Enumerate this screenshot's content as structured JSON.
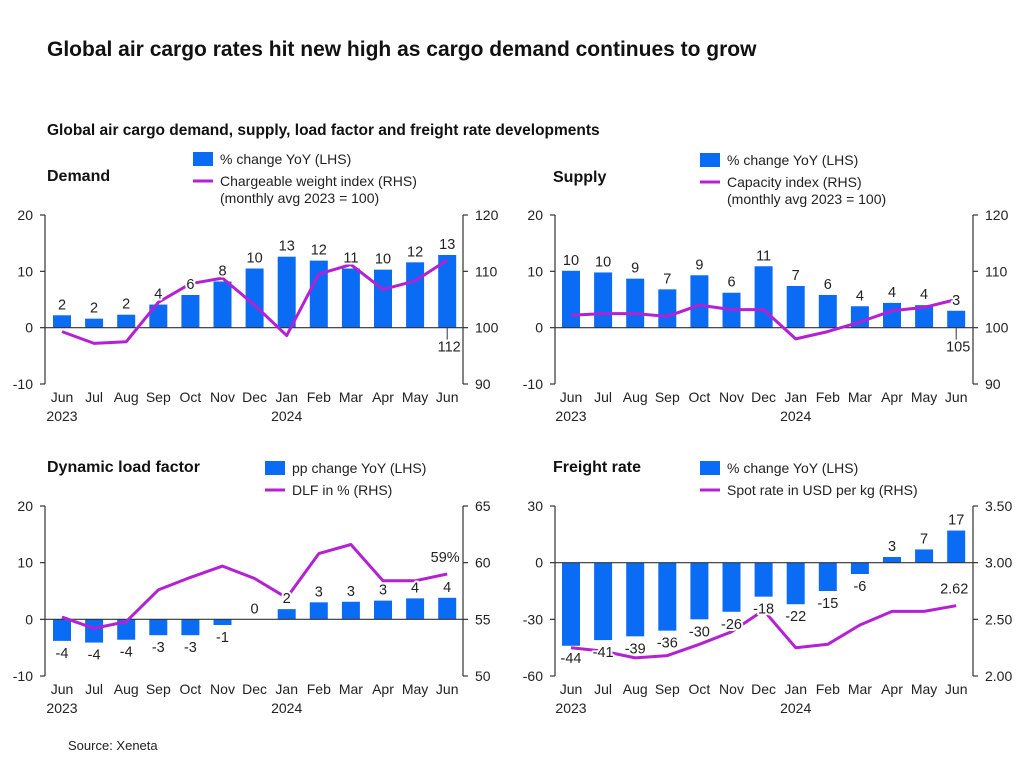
{
  "title": "Global air cargo rates hit new high as cargo demand continues to grow",
  "subtitle": "Global air cargo demand, supply, load factor and freight rate developments",
  "source": "Source: Xeneta",
  "colors": {
    "bar": "#0a6cf5",
    "line": "#b421d4",
    "axis": "#333333"
  },
  "chart_data": [
    {
      "type": "bar+line",
      "title": "Demand",
      "legend": {
        "bar": "% change YoY (LHS)",
        "line": "Chargeable weight index (RHS)",
        "line2": "(monthly avg 2023 = 100)"
      },
      "categories": [
        "Jun",
        "Jul",
        "Aug",
        "Sep",
        "Oct",
        "Nov",
        "Dec",
        "Jan",
        "Feb",
        "Mar",
        "Apr",
        "May",
        "Jun"
      ],
      "year_labels": [
        {
          "at": 0,
          "text": "2023"
        },
        {
          "at": 7,
          "text": "2024"
        }
      ],
      "bar_values": [
        2.2,
        1.6,
        2.3,
        4.1,
        5.8,
        8.2,
        10.5,
        12.6,
        11.9,
        10.5,
        10.3,
        11.6,
        12.9
      ],
      "bar_labels": [
        "2",
        "2",
        "2",
        "4",
        "6",
        "8",
        "10",
        "13",
        "12",
        "11",
        "10",
        "12",
        "13"
      ],
      "line_values": [
        99.3,
        97.2,
        97.5,
        104.5,
        107.8,
        108.8,
        104.0,
        98.6,
        109.5,
        111.2,
        106.8,
        108.3,
        112.0
      ],
      "line_end_label": "112",
      "ylim_left": [
        -10,
        20
      ],
      "yticks_left": [
        "-10",
        "0",
        "10",
        "20"
      ],
      "ylim_right": [
        90,
        120
      ],
      "yticks_right": [
        "90",
        "100",
        "110",
        "120"
      ]
    },
    {
      "type": "bar+line",
      "title": "Supply",
      "legend": {
        "bar": "% change YoY (LHS)",
        "line": "Capacity index (RHS)",
        "line2": "(monthly avg 2023 = 100)"
      },
      "categories": [
        "Jun",
        "Jul",
        "Aug",
        "Sep",
        "Oct",
        "Nov",
        "Dec",
        "Jan",
        "Feb",
        "Mar",
        "Apr",
        "May",
        "Jun"
      ],
      "year_labels": [
        {
          "at": 0,
          "text": "2023"
        },
        {
          "at": 7,
          "text": "2024"
        }
      ],
      "bar_values": [
        10.1,
        9.8,
        8.7,
        6.8,
        9.3,
        6.2,
        10.9,
        7.4,
        5.8,
        3.8,
        4.4,
        4.0,
        3.0
      ],
      "bar_labels": [
        "10",
        "10",
        "9",
        "7",
        "9",
        "6",
        "11",
        "7",
        "6",
        "4",
        "4",
        "4",
        "3"
      ],
      "line_values": [
        102.2,
        102.5,
        102.5,
        102.0,
        104.0,
        103.2,
        103.2,
        98.0,
        99.3,
        101.0,
        103.0,
        103.6,
        105.0
      ],
      "line_end_label": "105",
      "ylim_left": [
        -10,
        20
      ],
      "yticks_left": [
        "-10",
        "0",
        "10",
        "20"
      ],
      "ylim_right": [
        90,
        120
      ],
      "yticks_right": [
        "90",
        "100",
        "110",
        "120"
      ]
    },
    {
      "type": "bar+line",
      "title": "Dynamic load factor",
      "legend": {
        "bar": "pp change YoY (LHS)",
        "line": "DLF in % (RHS)",
        "line2": ""
      },
      "categories": [
        "Jun",
        "Jul",
        "Aug",
        "Sep",
        "Oct",
        "Nov",
        "Dec",
        "Jan",
        "Feb",
        "Mar",
        "Apr",
        "May",
        "Jun"
      ],
      "year_labels": [
        {
          "at": 0,
          "text": "2023"
        },
        {
          "at": 7,
          "text": "2024"
        }
      ],
      "bar_values": [
        -3.8,
        -4.1,
        -3.6,
        -2.8,
        -2.8,
        -1.0,
        0,
        1.8,
        3.0,
        3.1,
        3.3,
        3.7,
        3.8
      ],
      "bar_labels": [
        "-4",
        "-4",
        "-4",
        "-3",
        "-3",
        "-1",
        "0",
        "2",
        "3",
        "3",
        "3",
        "4",
        "4"
      ],
      "line_values": [
        55.2,
        54.2,
        54.8,
        57.6,
        58.7,
        59.7,
        58.6,
        56.9,
        60.8,
        61.6,
        58.4,
        58.4,
        59.0
      ],
      "line_end_label": "59%",
      "ylim_left": [
        -10,
        20
      ],
      "yticks_left": [
        "-10",
        "0",
        "10",
        "20"
      ],
      "ylim_right": [
        50,
        65
      ],
      "yticks_right": [
        "50",
        "55",
        "60",
        "65"
      ]
    },
    {
      "type": "bar+line",
      "title": "Freight rate",
      "legend": {
        "bar": "% change YoY (LHS)",
        "line": "Spot rate in USD per kg (RHS)",
        "line2": ""
      },
      "categories": [
        "Jun",
        "Jul",
        "Aug",
        "Sep",
        "Oct",
        "Nov",
        "Dec",
        "Jan",
        "Feb",
        "Mar",
        "Apr",
        "May",
        "Jun"
      ],
      "year_labels": [
        {
          "at": 0,
          "text": "2023"
        },
        {
          "at": 7,
          "text": "2024"
        }
      ],
      "bar_values": [
        -44,
        -41,
        -39,
        -36,
        -30,
        -26,
        -18,
        -22,
        -15,
        -6,
        3,
        7,
        17
      ],
      "bar_labels": [
        "-44",
        "-41",
        "-39",
        "-36",
        "-30",
        "-26",
        "-18",
        "-22",
        "-15",
        "-6",
        "3",
        "7",
        "17"
      ],
      "line_values": [
        2.25,
        2.22,
        2.16,
        2.18,
        2.28,
        2.39,
        2.58,
        2.25,
        2.28,
        2.45,
        2.57,
        2.57,
        2.62
      ],
      "line_end_label": "2.62",
      "ylim_left": [
        -60,
        30
      ],
      "yticks_left": [
        "-60",
        "-30",
        "0",
        "30"
      ],
      "ylim_right": [
        2.0,
        3.5
      ],
      "yticks_right": [
        "2.00",
        "2.50",
        "3.00",
        "3.50"
      ]
    }
  ]
}
